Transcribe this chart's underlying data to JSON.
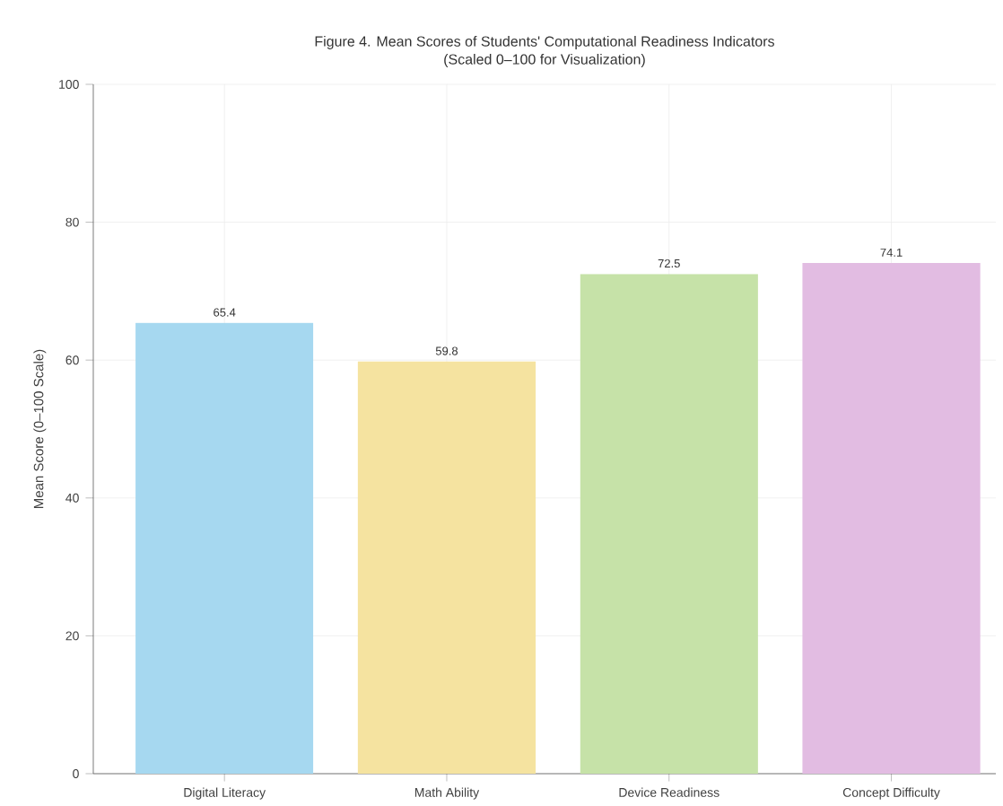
{
  "chart_data": {
    "type": "bar",
    "title": "Figure 4. Mean Scores of Students' Computational Readiness Indicators",
    "subtitle": "(Scaled 0–100 for Visualization)",
    "ylabel": "Mean Score (0–100 Scale)",
    "categories": [
      "Digital Literacy",
      "Math Ability",
      "Device Readiness",
      "Concept Difficulty"
    ],
    "values": [
      65.4,
      59.8,
      72.5,
      74.1
    ],
    "colors": [
      "#a6d8f0",
      "#f5e3a0",
      "#c6e2a8",
      "#e2bce2"
    ],
    "ylim": [
      0,
      100
    ],
    "yticks": [
      0,
      20,
      40,
      60,
      80,
      100
    ],
    "grid": true,
    "data_labels": true
  }
}
